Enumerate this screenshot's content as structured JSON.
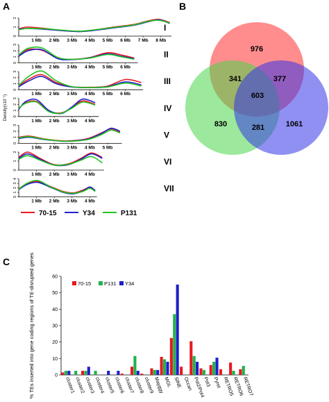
{
  "panel_letters": {
    "a": "A",
    "b": "B",
    "c": "C"
  },
  "chart_data": [
    {
      "type": "line",
      "panel": "A",
      "ylabel": "Density(x10⁻¹)",
      "legend": {
        "placement": "bottom",
        "entries": [
          "70-15",
          "Y34",
          "P131"
        ]
      },
      "series_colors": {
        "70-15": "#e8191f",
        "Y34": "#1f1fc9",
        "P131": "#22c322"
      },
      "chromosomes": [
        {
          "label": "I",
          "xmax": 8.6,
          "ylim": [
            0,
            2
          ],
          "ytick_labels": [
            "0",
            "1",
            "2"
          ],
          "tick_labels": [
            "1 Mb",
            "2 Mb",
            "3 Mb",
            "4 Mb",
            "5 Mb",
            "6 Mb",
            "7 Mb",
            "8 Mb"
          ],
          "series": [
            {
              "name": "70-15",
              "x": [
                0,
                0.5,
                1.5,
                2.5,
                3.5,
                4.5,
                5.5,
                6.5,
                7.3,
                7.9,
                8.5
              ],
              "y": [
                0.8,
                1.0,
                0.85,
                0.6,
                0.55,
                0.75,
                1.05,
                1.3,
                1.7,
                1.85,
                1.5
              ]
            },
            {
              "name": "Y34",
              "x": [
                0,
                0.5,
                1.5,
                2.5,
                3.5,
                4.5,
                5.5,
                6.5,
                7.3,
                7.9,
                8.5
              ],
              "y": [
                0.75,
                0.85,
                0.75,
                0.6,
                0.5,
                0.7,
                0.95,
                1.2,
                1.6,
                1.8,
                1.4
              ]
            },
            {
              "name": "P131",
              "x": [
                0,
                0.5,
                1.5,
                2.5,
                3.5,
                4.5,
                5.5,
                6.5,
                7.3,
                7.9,
                8.5
              ],
              "y": [
                0.7,
                0.85,
                0.8,
                0.65,
                0.55,
                0.75,
                1.0,
                1.25,
                1.65,
                1.75,
                1.45
              ]
            }
          ]
        },
        {
          "label": "II",
          "xmax": 6.7,
          "ylim": [
            0,
            3
          ],
          "ytick_labels": [
            "0",
            "1",
            "2",
            "3"
          ],
          "tick_labels": [
            "1 Mb",
            "2 Mb",
            "3 Mb",
            "4 Mb",
            "5 Mb",
            "6 Mb"
          ],
          "series": [
            {
              "name": "70-15",
              "x": [
                0,
                0.5,
                1.3,
                2.2,
                3.0,
                4.0,
                5.0,
                5.8,
                6.5
              ],
              "y": [
                1.2,
                2.2,
                2.1,
                0.8,
                0.6,
                0.9,
                1.7,
                1.3,
                0.8
              ]
            },
            {
              "name": "Y34",
              "x": [
                0,
                0.5,
                1.3,
                2.2,
                3.0,
                4.0,
                5.0,
                5.8,
                6.5
              ],
              "y": [
                1.1,
                2.0,
                2.2,
                0.7,
                0.55,
                0.85,
                1.5,
                1.1,
                0.7
              ]
            },
            {
              "name": "P131",
              "x": [
                0,
                0.5,
                1.3,
                2.2,
                3.0,
                4.0,
                5.0,
                5.8,
                6.5
              ],
              "y": [
                1.3,
                2.4,
                2.5,
                0.9,
                0.6,
                0.8,
                1.4,
                1.0,
                0.6
              ]
            }
          ]
        },
        {
          "label": "III",
          "xmax": 7.0,
          "ylim": [
            0,
            3
          ],
          "ytick_labels": [
            "0",
            "1",
            "2",
            "3"
          ],
          "tick_labels": [
            "1 Mb",
            "2 Mb",
            "3 Mb",
            "4 Mb",
            "5 Mb",
            "6 Mb"
          ],
          "series": [
            {
              "name": "70-15",
              "x": [
                0,
                0.6,
                1.3,
                2.1,
                3.0,
                4.0,
                5.0,
                6.0,
                6.9
              ],
              "y": [
                0.6,
                1.8,
                2.5,
                1.2,
                0.5,
                0.4,
                0.6,
                1.7,
                1.2
              ]
            },
            {
              "name": "Y34",
              "x": [
                0,
                0.6,
                1.3,
                2.1,
                3.0,
                4.0,
                5.0,
                6.0,
                6.9
              ],
              "y": [
                0.5,
                1.5,
                2.2,
                1.0,
                0.45,
                0.35,
                0.5,
                1.3,
                0.8
              ]
            },
            {
              "name": "P131",
              "x": [
                0,
                0.6,
                1.3,
                2.1,
                3.0,
                4.0,
                5.0,
                6.0,
                6.9
              ],
              "y": [
                0.7,
                2.3,
                3.1,
                1.5,
                0.5,
                0.35,
                0.45,
                1.1,
                0.6
              ]
            }
          ]
        },
        {
          "label": "IV",
          "xmax": 4.5,
          "ylim": [
            0,
            3
          ],
          "ytick_labels": [
            "0",
            "1",
            "2",
            "3"
          ],
          "tick_labels": [
            "1 Mb",
            "2 Mb",
            "3 Mb",
            "4 Mb"
          ],
          "series": [
            {
              "name": "70-15",
              "x": [
                0,
                0.4,
                1.0,
                1.7,
                2.4,
                3.0,
                3.6,
                4.3
              ],
              "y": [
                1.3,
                2.3,
                2.5,
                0.9,
                0.6,
                1.5,
                2.6,
                2.0
              ]
            },
            {
              "name": "Y34",
              "x": [
                0,
                0.4,
                1.0,
                1.7,
                2.4,
                3.0,
                3.6,
                4.3
              ],
              "y": [
                1.2,
                2.5,
                2.8,
                1.0,
                0.5,
                1.6,
                2.9,
                2.3
              ]
            },
            {
              "name": "P131",
              "x": [
                0,
                0.4,
                1.0,
                1.7,
                2.4,
                3.0,
                3.6,
                4.3
              ],
              "y": [
                1.4,
                2.2,
                2.4,
                0.8,
                0.55,
                1.4,
                2.4,
                1.9
              ]
            }
          ]
        },
        {
          "label": "V",
          "xmax": 5.8,
          "ylim": [
            0,
            3
          ],
          "ytick_labels": [
            "0",
            "1",
            "2",
            "3"
          ],
          "tick_labels": [
            "1 Mb",
            "2 Mb",
            "3 Mb",
            "4 Mb",
            "5 Mb"
          ],
          "series": [
            {
              "name": "70-15",
              "x": [
                0,
                0.6,
                1.5,
                2.5,
                3.3,
                4.0,
                4.7,
                5.2,
                5.7
              ],
              "y": [
                1.0,
                1.2,
                0.7,
                0.4,
                0.5,
                0.9,
                1.8,
                2.4,
                1.9
              ]
            },
            {
              "name": "Y34",
              "x": [
                0,
                0.6,
                1.5,
                2.5,
                3.3,
                4.0,
                4.7,
                5.2,
                5.7
              ],
              "y": [
                0.8,
                1.0,
                0.6,
                0.35,
                0.45,
                0.8,
                1.7,
                2.5,
                2.0
              ]
            },
            {
              "name": "P131",
              "x": [
                0,
                0.6,
                1.5,
                2.5,
                3.3,
                4.0,
                4.7,
                5.2,
                5.7
              ],
              "y": [
                0.9,
                1.1,
                0.65,
                0.35,
                0.4,
                0.7,
                1.5,
                2.2,
                1.7
              ]
            }
          ]
        },
        {
          "label": "VI",
          "xmax": 4.8,
          "ylim": [
            0,
            2
          ],
          "ytick_labels": [
            "0",
            "1",
            "2"
          ],
          "tick_labels": [
            "1 Mb",
            "2 Mb",
            "3 Mb",
            "4 Mb"
          ],
          "series": [
            {
              "name": "70-15",
              "x": [
                0,
                0.5,
                1.2,
                2.0,
                2.8,
                3.5,
                4.1,
                4.7
              ],
              "y": [
                1.4,
                2.0,
                1.3,
                0.6,
                0.7,
                1.3,
                1.9,
                1.4
              ]
            },
            {
              "name": "Y34",
              "x": [
                0,
                0.5,
                1.2,
                2.0,
                2.8,
                3.5,
                4.1,
                4.7
              ],
              "y": [
                1.3,
                1.8,
                1.2,
                0.55,
                0.6,
                1.2,
                1.8,
                1.3
              ]
            },
            {
              "name": "P131",
              "x": [
                0,
                0.5,
                1.2,
                2.0,
                2.8,
                3.5,
                4.1,
                4.7
              ],
              "y": [
                1.2,
                1.6,
                1.1,
                0.55,
                0.65,
                1.1,
                1.5,
                0.8
              ]
            }
          ]
        },
        {
          "label": "VII",
          "xmax": 4.4,
          "ylim": [
            0,
            4
          ],
          "ytick_labels": [
            "0",
            "1",
            "2",
            "3",
            "4"
          ],
          "tick_labels": [
            "1 Mb",
            "2 Mb",
            "3 Mb",
            "4 Mb"
          ],
          "series": [
            {
              "name": "70-15",
              "x": [
                0,
                0.5,
                1.1,
                1.8,
                2.5,
                3.1,
                3.6,
                4.0,
                4.3
              ],
              "y": [
                1.8,
                3.0,
                3.4,
                2.3,
                1.2,
                0.9,
                1.5,
                2.1,
                1.3
              ]
            },
            {
              "name": "Y34",
              "x": [
                0,
                0.5,
                1.1,
                1.8,
                2.5,
                3.1,
                3.6,
                4.0,
                4.3
              ],
              "y": [
                1.6,
                2.8,
                3.2,
                2.1,
                1.0,
                0.7,
                1.3,
                2.2,
                1.4
              ]
            },
            {
              "name": "P131",
              "x": [
                0,
                0.5,
                1.1,
                1.8,
                2.5,
                3.1,
                3.6,
                4.0,
                4.3
              ],
              "y": [
                1.7,
                3.1,
                3.6,
                2.2,
                1.1,
                0.8,
                1.2,
                1.9,
                1.2
              ]
            }
          ]
        }
      ]
    },
    {
      "type": "venn",
      "panel": "B",
      "sets": [
        {
          "name": "70-15",
          "color": "#ff3030"
        },
        {
          "name": "P131",
          "color": "#4bd64b"
        },
        {
          "name": "Y34",
          "color": "#3434e8"
        }
      ],
      "regions": [
        {
          "sets": [
            "70-15"
          ],
          "value": "976"
        },
        {
          "sets": [
            "P131"
          ],
          "value": "830"
        },
        {
          "sets": [
            "Y34"
          ],
          "value": "1061"
        },
        {
          "sets": [
            "70-15",
            "P131"
          ],
          "value": "341"
        },
        {
          "sets": [
            "70-15",
            "Y34"
          ],
          "value": "377"
        },
        {
          "sets": [
            "P131",
            "Y34"
          ],
          "value": "281"
        },
        {
          "sets": [
            "70-15",
            "P131",
            "Y34"
          ],
          "value": "603"
        }
      ]
    },
    {
      "type": "bar",
      "panel": "C",
      "ylabel": "% TEs inserted into gene coding regions of TE-disrupted genes",
      "ylim": [
        0,
        60
      ],
      "legend": {
        "placement": "top-left"
      },
      "categories": [
        "cluster1",
        "cluster2",
        "cluster3",
        "cluster4",
        "cluster5",
        "cluster6",
        "cluster7",
        "cluster8",
        "cluster9",
        "Mayggy",
        "MGL",
        "SINE",
        "Occan",
        "Pot2/Pot4",
        "Pot3",
        "Pyret",
        "RETRO5",
        "RETRO6",
        "RETRO7"
      ],
      "series": [
        {
          "name": "70-15",
          "color": "#e8191f",
          "values": [
            1.5,
            0,
            2.5,
            0,
            0,
            0,
            0.8,
            5,
            0.8,
            4,
            11,
            22.5,
            5,
            20.5,
            4,
            6,
            3.5,
            7.5,
            3.5
          ]
        },
        {
          "name": "P131",
          "color": "#22b14c",
          "values": [
            2.5,
            2.5,
            2.5,
            2.5,
            0,
            0,
            0,
            11.5,
            0,
            3,
            9.5,
            37,
            0,
            11.5,
            3,
            8,
            0,
            2.5,
            5.5
          ]
        },
        {
          "name": "Y34",
          "color": "#1f1fc9",
          "values": [
            2.5,
            0,
            5,
            0,
            2.5,
            2.5,
            0,
            2.5,
            0,
            3,
            8,
            55,
            0,
            8,
            0,
            10.5,
            0,
            0,
            0
          ]
        }
      ]
    }
  ]
}
